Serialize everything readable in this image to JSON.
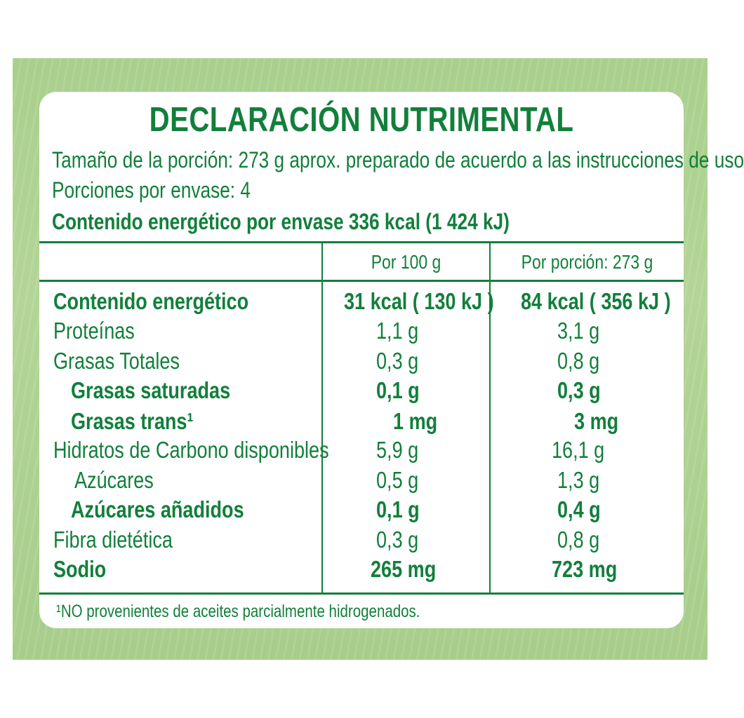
{
  "label": {
    "title": "DECLARACIÓN NUTRIMENTAL",
    "serving_size": "Tamaño de la porción: 273 g aprox. preparado de acuerdo a las instrucciones de uso",
    "servings": "Porciones por envase: 4",
    "energy_per_package": "Contenido energético por envase 336 kcal (1 424 kJ)",
    "columns": {
      "per_100g": "Por 100 g",
      "per_portion": "Por porción: 273 g"
    },
    "rows": [
      {
        "name": "Contenido energético",
        "v100": "31 kcal ( 130 kJ )",
        "vportion": "84 kcal ( 356 kJ )"
      },
      {
        "name": "Proteínas",
        "v100": "1,1 g",
        "vportion": "3,1 g"
      },
      {
        "name": "Grasas Totales",
        "v100": "0,3 g",
        "vportion": "0,8 g"
      },
      {
        "name": "Grasas saturadas",
        "v100": "0,1 g",
        "vportion": "0,3 g"
      },
      {
        "name": "Grasas trans¹",
        "v100": "1 mg",
        "vportion": "3 mg"
      },
      {
        "name": "Hidratos de Carbono disponibles",
        "v100": "5,9 g",
        "vportion": "16,1 g"
      },
      {
        "name": "Azúcares",
        "v100": "0,5 g",
        "vportion": "1,3 g"
      },
      {
        "name": "Azúcares añadidos",
        "v100": "0,1 g",
        "vportion": "0,4 g"
      },
      {
        "name": "Fibra dietética",
        "v100": "0,3 g",
        "vportion": "0,8 g"
      },
      {
        "name": "Sodio",
        "v100": "265 mg",
        "vportion": "723 mg"
      }
    ],
    "footnote": "¹NO provenientes de aceites parcialmente hidrogenados."
  },
  "colors": {
    "text_green": "#127f3b",
    "background_green": "#a8cf8c",
    "card": "#ffffff"
  }
}
